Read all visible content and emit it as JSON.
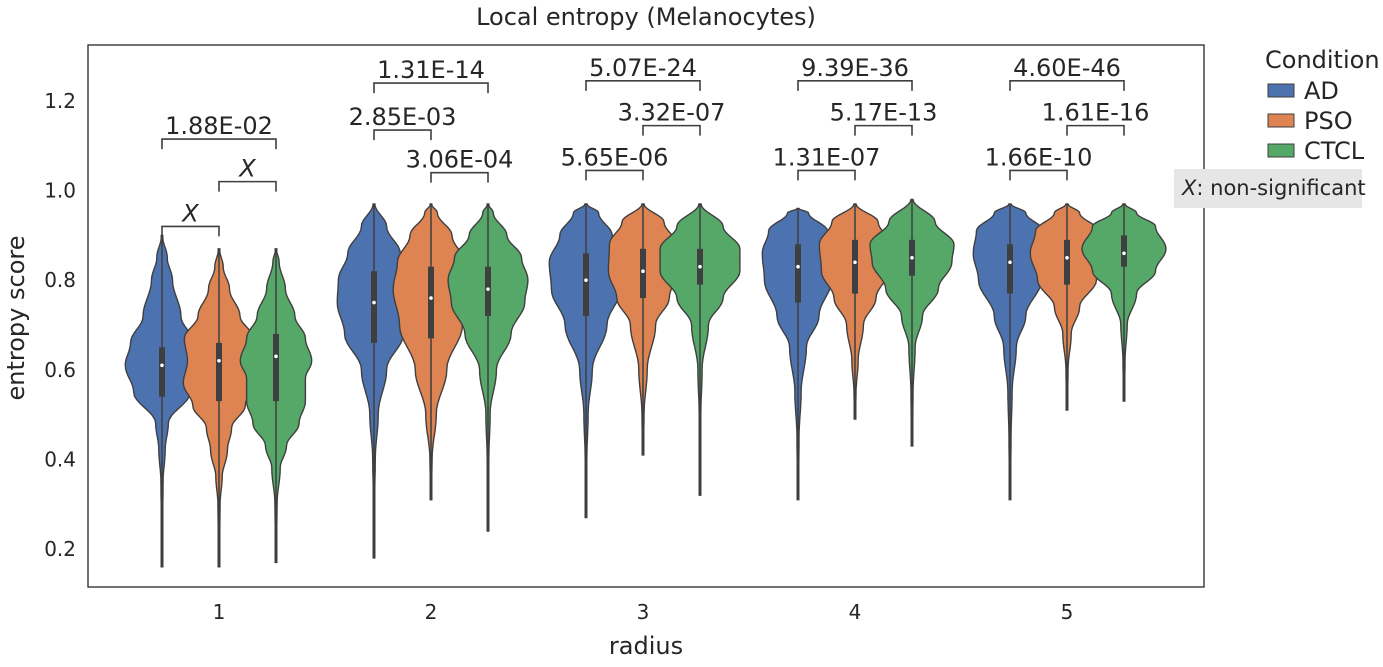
{
  "chart_data": {
    "type": "violin",
    "title": "Local entropy (Melanocytes)",
    "xlabel": "radius",
    "ylabel": "entropy score",
    "categories": [
      "1",
      "2",
      "3",
      "4",
      "5"
    ],
    "yticks": [
      "0.2",
      "0.4",
      "0.6",
      "0.8",
      "1.0",
      "1.2"
    ],
    "ylim": [
      0.115,
      1.325
    ],
    "grid": false,
    "legend": {
      "title": "Condition",
      "placement": "outside-top-right",
      "entries": [
        "AD",
        "PSO",
        "CTCL"
      ]
    },
    "series": [
      {
        "name": "AD",
        "color": "#4c72b0",
        "violins": [
          {
            "min": 0.16,
            "max": 0.9,
            "q1": 0.54,
            "median": 0.61,
            "q3": 0.65,
            "shape": [
              [
                0.16,
                0.003
              ],
              [
                0.25,
                0.006
              ],
              [
                0.35,
                0.01
              ],
              [
                0.42,
                0.03
              ],
              [
                0.48,
                0.06
              ],
              [
                0.55,
                0.27
              ],
              [
                0.61,
                0.35
              ],
              [
                0.66,
                0.3
              ],
              [
                0.72,
                0.18
              ],
              [
                0.8,
                0.1
              ],
              [
                0.85,
                0.05
              ],
              [
                0.9,
                0.004
              ]
            ]
          },
          {
            "min": 0.18,
            "max": 0.97,
            "q1": 0.66,
            "median": 0.75,
            "q3": 0.82,
            "shape": [
              [
                0.18,
                0.003
              ],
              [
                0.3,
                0.005
              ],
              [
                0.4,
                0.012
              ],
              [
                0.5,
                0.04
              ],
              [
                0.6,
                0.12
              ],
              [
                0.68,
                0.28
              ],
              [
                0.75,
                0.35
              ],
              [
                0.8,
                0.34
              ],
              [
                0.86,
                0.25
              ],
              [
                0.92,
                0.12
              ],
              [
                0.97,
                0.008
              ]
            ]
          },
          {
            "min": 0.27,
            "max": 0.97,
            "q1": 0.72,
            "median": 0.8,
            "q3": 0.86,
            "shape": [
              [
                0.27,
                0.003
              ],
              [
                0.4,
                0.008
              ],
              [
                0.5,
                0.02
              ],
              [
                0.6,
                0.06
              ],
              [
                0.7,
                0.2
              ],
              [
                0.78,
                0.33
              ],
              [
                0.84,
                0.35
              ],
              [
                0.9,
                0.25
              ],
              [
                0.95,
                0.12
              ],
              [
                0.97,
                0.01
              ]
            ]
          },
          {
            "min": 0.31,
            "max": 0.96,
            "q1": 0.75,
            "median": 0.83,
            "q3": 0.88,
            "shape": [
              [
                0.31,
                0.003
              ],
              [
                0.45,
                0.01
              ],
              [
                0.55,
                0.03
              ],
              [
                0.65,
                0.08
              ],
              [
                0.72,
                0.2
              ],
              [
                0.8,
                0.32
              ],
              [
                0.86,
                0.34
              ],
              [
                0.91,
                0.28
              ],
              [
                0.95,
                0.1
              ],
              [
                0.96,
                0.01
              ]
            ]
          },
          {
            "min": 0.31,
            "max": 0.97,
            "q1": 0.77,
            "median": 0.84,
            "q3": 0.88,
            "shape": [
              [
                0.31,
                0.003
              ],
              [
                0.45,
                0.01
              ],
              [
                0.55,
                0.02
              ],
              [
                0.65,
                0.06
              ],
              [
                0.72,
                0.15
              ],
              [
                0.8,
                0.3
              ],
              [
                0.86,
                0.35
              ],
              [
                0.91,
                0.32
              ],
              [
                0.95,
                0.15
              ],
              [
                0.97,
                0.01
              ]
            ]
          }
        ]
      },
      {
        "name": "PSO",
        "color": "#dd8452",
        "violins": [
          {
            "min": 0.16,
            "max": 0.87,
            "q1": 0.53,
            "median": 0.62,
            "q3": 0.66,
            "shape": [
              [
                0.16,
                0.003
              ],
              [
                0.3,
                0.01
              ],
              [
                0.36,
                0.03
              ],
              [
                0.42,
                0.08
              ],
              [
                0.47,
                0.12
              ],
              [
                0.52,
                0.25
              ],
              [
                0.57,
                0.34
              ],
              [
                0.62,
                0.3
              ],
              [
                0.67,
                0.33
              ],
              [
                0.72,
                0.2
              ],
              [
                0.78,
                0.1
              ],
              [
                0.83,
                0.04
              ],
              [
                0.87,
                0.004
              ]
            ]
          },
          {
            "min": 0.31,
            "max": 0.97,
            "q1": 0.67,
            "median": 0.76,
            "q3": 0.83,
            "shape": [
              [
                0.31,
                0.003
              ],
              [
                0.4,
                0.01
              ],
              [
                0.5,
                0.05
              ],
              [
                0.6,
                0.15
              ],
              [
                0.7,
                0.3
              ],
              [
                0.78,
                0.36
              ],
              [
                0.84,
                0.32
              ],
              [
                0.9,
                0.2
              ],
              [
                0.95,
                0.06
              ],
              [
                0.97,
                0.005
              ]
            ]
          },
          {
            "min": 0.41,
            "max": 0.97,
            "q1": 0.76,
            "median": 0.82,
            "q3": 0.87,
            "shape": [
              [
                0.41,
                0.003
              ],
              [
                0.5,
                0.01
              ],
              [
                0.6,
                0.04
              ],
              [
                0.7,
                0.12
              ],
              [
                0.76,
                0.25
              ],
              [
                0.82,
                0.33
              ],
              [
                0.88,
                0.32
              ],
              [
                0.93,
                0.2
              ],
              [
                0.97,
                0.01
              ]
            ]
          },
          {
            "min": 0.49,
            "max": 0.97,
            "q1": 0.77,
            "median": 0.84,
            "q3": 0.89,
            "shape": [
              [
                0.49,
                0.003
              ],
              [
                0.55,
                0.01
              ],
              [
                0.62,
                0.03
              ],
              [
                0.7,
                0.08
              ],
              [
                0.76,
                0.2
              ],
              [
                0.82,
                0.32
              ],
              [
                0.88,
                0.34
              ],
              [
                0.93,
                0.22
              ],
              [
                0.97,
                0.01
              ]
            ]
          },
          {
            "min": 0.51,
            "max": 0.97,
            "q1": 0.79,
            "median": 0.85,
            "q3": 0.89,
            "shape": [
              [
                0.51,
                0.003
              ],
              [
                0.6,
                0.01
              ],
              [
                0.68,
                0.04
              ],
              [
                0.74,
                0.12
              ],
              [
                0.8,
                0.28
              ],
              [
                0.86,
                0.35
              ],
              [
                0.91,
                0.3
              ],
              [
                0.95,
                0.12
              ],
              [
                0.97,
                0.01
              ]
            ]
          }
        ]
      },
      {
        "name": "CTCL",
        "color": "#55a868",
        "violins": [
          {
            "min": 0.17,
            "max": 0.87,
            "q1": 0.53,
            "median": 0.63,
            "q3": 0.68,
            "shape": [
              [
                0.17,
                0.003
              ],
              [
                0.3,
                0.01
              ],
              [
                0.38,
                0.04
              ],
              [
                0.43,
                0.1
              ],
              [
                0.48,
                0.22
              ],
              [
                0.53,
                0.28
              ],
              [
                0.58,
                0.28
              ],
              [
                0.62,
                0.34
              ],
              [
                0.67,
                0.28
              ],
              [
                0.72,
                0.18
              ],
              [
                0.78,
                0.09
              ],
              [
                0.84,
                0.03
              ],
              [
                0.87,
                0.004
              ]
            ]
          },
          {
            "min": 0.24,
            "max": 0.97,
            "q1": 0.72,
            "median": 0.78,
            "q3": 0.83,
            "shape": [
              [
                0.24,
                0.003
              ],
              [
                0.4,
                0.008
              ],
              [
                0.5,
                0.02
              ],
              [
                0.6,
                0.08
              ],
              [
                0.68,
                0.22
              ],
              [
                0.75,
                0.35
              ],
              [
                0.8,
                0.38
              ],
              [
                0.85,
                0.32
              ],
              [
                0.9,
                0.18
              ],
              [
                0.95,
                0.05
              ],
              [
                0.97,
                0.005
              ]
            ]
          },
          {
            "min": 0.32,
            "max": 0.97,
            "q1": 0.79,
            "median": 0.83,
            "q3": 0.87,
            "shape": [
              [
                0.32,
                0.003
              ],
              [
                0.5,
                0.008
              ],
              [
                0.6,
                0.02
              ],
              [
                0.7,
                0.08
              ],
              [
                0.76,
                0.22
              ],
              [
                0.82,
                0.38
              ],
              [
                0.87,
                0.38
              ],
              [
                0.92,
                0.22
              ],
              [
                0.97,
                0.01
              ]
            ]
          },
          {
            "min": 0.43,
            "max": 0.98,
            "q1": 0.81,
            "median": 0.85,
            "q3": 0.89,
            "shape": [
              [
                0.43,
                0.003
              ],
              [
                0.55,
                0.01
              ],
              [
                0.65,
                0.03
              ],
              [
                0.72,
                0.1
              ],
              [
                0.78,
                0.25
              ],
              [
                0.84,
                0.38
              ],
              [
                0.88,
                0.4
              ],
              [
                0.93,
                0.22
              ],
              [
                0.98,
                0.01
              ]
            ]
          },
          {
            "min": 0.53,
            "max": 0.97,
            "q1": 0.83,
            "median": 0.86,
            "q3": 0.9,
            "shape": [
              [
                0.53,
                0.003
              ],
              [
                0.62,
                0.01
              ],
              [
                0.7,
                0.03
              ],
              [
                0.77,
                0.12
              ],
              [
                0.82,
                0.3
              ],
              [
                0.87,
                0.4
              ],
              [
                0.92,
                0.3
              ],
              [
                0.95,
                0.12
              ],
              [
                0.97,
                0.01
              ]
            ]
          }
        ]
      }
    ],
    "annotations": [
      {
        "category": "1",
        "pair": [
          "AD",
          "PSO"
        ],
        "y": 0.92,
        "text": "X",
        "italic": true
      },
      {
        "category": "1",
        "pair": [
          "PSO",
          "CTCL"
        ],
        "y": 1.02,
        "text": "X",
        "italic": true
      },
      {
        "category": "1",
        "pair": [
          "AD",
          "CTCL"
        ],
        "y": 1.115,
        "text": "1.88E-02",
        "italic": false
      },
      {
        "category": "2",
        "pair": [
          "AD",
          "PSO"
        ],
        "y": 1.135,
        "text": "2.85E-03",
        "italic": false
      },
      {
        "category": "2",
        "pair": [
          "PSO",
          "CTCL"
        ],
        "y": 1.04,
        "text": "3.06E-04",
        "italic": false
      },
      {
        "category": "2",
        "pair": [
          "AD",
          "CTCL"
        ],
        "y": 1.24,
        "text": "1.31E-14",
        "italic": false
      },
      {
        "category": "3",
        "pair": [
          "AD",
          "PSO"
        ],
        "y": 1.045,
        "text": "5.65E-06",
        "italic": false
      },
      {
        "category": "3",
        "pair": [
          "PSO",
          "CTCL"
        ],
        "y": 1.145,
        "text": "3.32E-07",
        "italic": false
      },
      {
        "category": "3",
        "pair": [
          "AD",
          "CTCL"
        ],
        "y": 1.245,
        "text": "5.07E-24",
        "italic": false
      },
      {
        "category": "4",
        "pair": [
          "AD",
          "PSO"
        ],
        "y": 1.045,
        "text": "1.31E-07",
        "italic": false
      },
      {
        "category": "4",
        "pair": [
          "PSO",
          "CTCL"
        ],
        "y": 1.145,
        "text": "5.17E-13",
        "italic": false
      },
      {
        "category": "4",
        "pair": [
          "AD",
          "CTCL"
        ],
        "y": 1.245,
        "text": "9.39E-36",
        "italic": false
      },
      {
        "category": "5",
        "pair": [
          "AD",
          "PSO"
        ],
        "y": 1.045,
        "text": "1.66E-10",
        "italic": false
      },
      {
        "category": "5",
        "pair": [
          "PSO",
          "CTCL"
        ],
        "y": 1.145,
        "text": "1.61E-16",
        "italic": false
      },
      {
        "category": "5",
        "pair": [
          "AD",
          "CTCL"
        ],
        "y": 1.245,
        "text": "4.60E-46",
        "italic": false
      }
    ],
    "note": {
      "symbol": "X",
      "text": ": non-significant"
    }
  }
}
